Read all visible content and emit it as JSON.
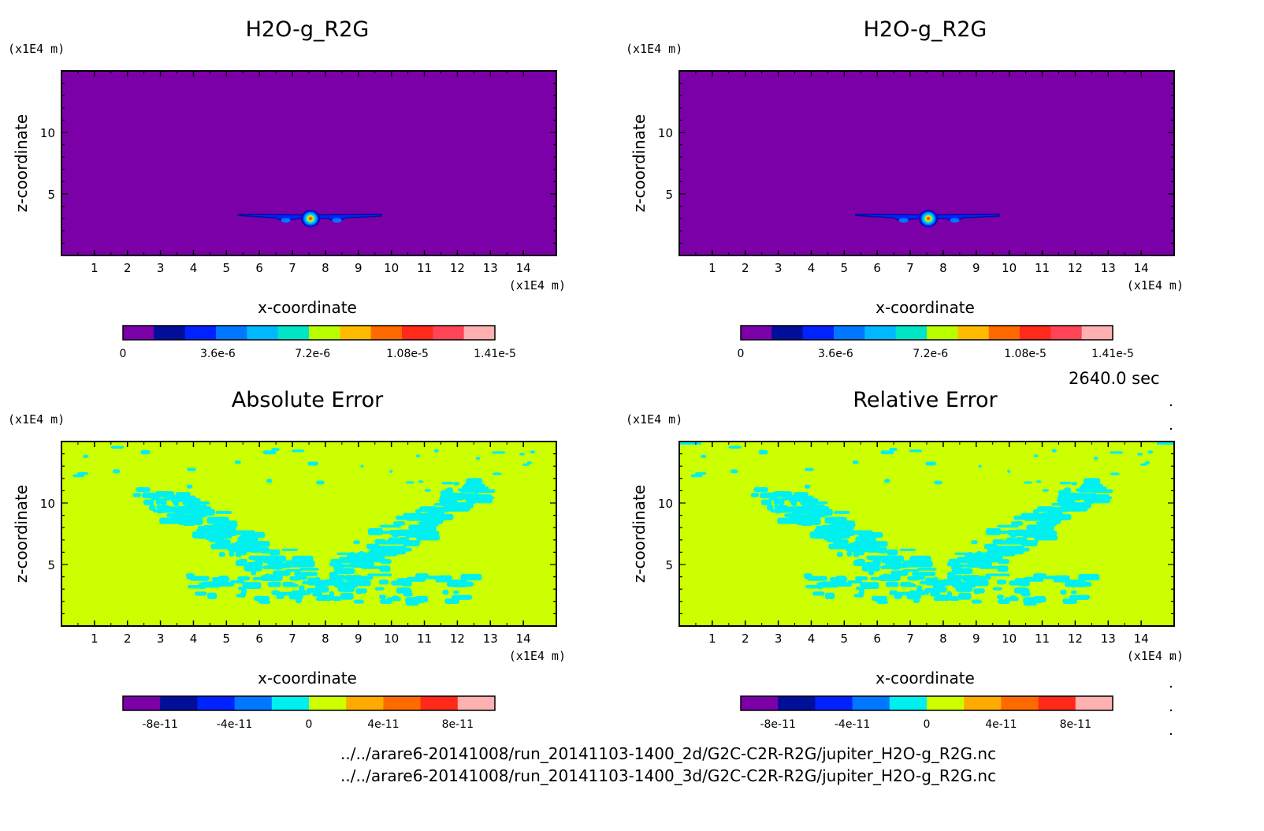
{
  "chart_data": [
    {
      "type": "heatmap",
      "title": "H2O-g_R2G",
      "xlabel": "x-coordinate",
      "ylabel": "z-coordinate",
      "x_unit": "(x1E4 m)",
      "y_unit": "(x1E4 m)",
      "xlim": [
        0,
        15
      ],
      "ylim": [
        0,
        15
      ],
      "x_ticks": [
        "1",
        "2",
        "3",
        "4",
        "5",
        "6",
        "7",
        "8",
        "9",
        "10",
        "11",
        "12",
        "13",
        "14"
      ],
      "y_ticks": [
        "5",
        "10"
      ],
      "background": "#7b00a8",
      "colorbar": {
        "colors": [
          "#7b00a8",
          "#000e99",
          "#0022ff",
          "#0077ff",
          "#00b8ff",
          "#00e5c5",
          "#b8ff00",
          "#ffbb00",
          "#ff6a00",
          "#ff2a1a",
          "#ff4455",
          "#ffb0b0"
        ],
        "labels": [
          "0",
          "3.6e-6",
          "7.2e-6",
          "1.08e-5",
          "1.41e-5"
        ]
      },
      "features": [
        {
          "x": 7.55,
          "z": 3.0,
          "value": "max",
          "shape": "peak"
        },
        {
          "x": 6.2,
          "z": 3.1,
          "value": "3.6e-6",
          "shape": "left-wing"
        },
        {
          "x": 9.0,
          "z": 3.1,
          "value": "3.6e-6",
          "shape": "right-wing"
        }
      ]
    },
    {
      "type": "heatmap",
      "title": "H2O-g_R2G",
      "xlabel": "x-coordinate",
      "ylabel": "z-coordinate",
      "x_unit": "(x1E4 m)",
      "y_unit": "(x1E4 m)",
      "xlim": [
        0,
        15
      ],
      "ylim": [
        0,
        15
      ],
      "x_ticks": [
        "1",
        "2",
        "3",
        "4",
        "5",
        "6",
        "7",
        "8",
        "9",
        "10",
        "11",
        "12",
        "13",
        "14"
      ],
      "y_ticks": [
        "5",
        "10"
      ],
      "background": "#7b00a8",
      "colorbar": {
        "colors": [
          "#7b00a8",
          "#000e99",
          "#0022ff",
          "#0077ff",
          "#00b8ff",
          "#00e5c5",
          "#b8ff00",
          "#ffbb00",
          "#ff6a00",
          "#ff2a1a",
          "#ff4455",
          "#ffb0b0"
        ],
        "labels": [
          "0",
          "3.6e-6",
          "7.2e-6",
          "1.08e-5",
          "1.41e-5"
        ]
      },
      "features": [
        {
          "x": 7.55,
          "z": 3.0,
          "value": "max",
          "shape": "peak"
        },
        {
          "x": 6.2,
          "z": 3.1,
          "value": "3.6e-6",
          "shape": "left-wing"
        },
        {
          "x": 9.0,
          "z": 3.1,
          "value": "3.6e-6",
          "shape": "right-wing"
        }
      ]
    },
    {
      "type": "heatmap",
      "title": "Absolute Error",
      "xlabel": "x-coordinate",
      "ylabel": "z-coordinate",
      "x_unit": "(x1E4 m)",
      "y_unit": "(x1E4 m)",
      "xlim": [
        0,
        15
      ],
      "ylim": [
        0,
        15
      ],
      "x_ticks": [
        "1",
        "2",
        "3",
        "4",
        "5",
        "6",
        "7",
        "8",
        "9",
        "10",
        "11",
        "12",
        "13",
        "14"
      ],
      "y_ticks": [
        "5",
        "10"
      ],
      "background": "#ccff00",
      "colorbar": {
        "colors": [
          "#7b00a8",
          "#000e99",
          "#0022ff",
          "#0077ff",
          "#00f0f0",
          "#ccff00",
          "#ffaa00",
          "#ff6a00",
          "#ff2a1a",
          "#ffb0b0"
        ],
        "labels": [
          "-8e-11",
          "-4e-11",
          "0",
          "4e-11",
          "8e-11"
        ]
      },
      "features": [
        {
          "pattern": "V-shaped band of slightly negative error",
          "color": "#00f0f0"
        }
      ]
    },
    {
      "type": "heatmap",
      "title": "Relative Error",
      "xlabel": "x-coordinate",
      "ylabel": "z-coordinate",
      "x_unit": "(x1E4 m)",
      "y_unit": "(x1E4 m)",
      "xlim": [
        0,
        15
      ],
      "ylim": [
        0,
        15
      ],
      "x_ticks": [
        "1",
        "2",
        "3",
        "4",
        "5",
        "6",
        "7",
        "8",
        "9",
        "10",
        "11",
        "12",
        "13",
        "14"
      ],
      "y_ticks": [
        "5",
        "10"
      ],
      "background": "#ccff00",
      "colorbar": {
        "colors": [
          "#7b00a8",
          "#000e99",
          "#0022ff",
          "#0077ff",
          "#00f0f0",
          "#ccff00",
          "#ffaa00",
          "#ff6a00",
          "#ff2a1a",
          "#ffb0b0"
        ],
        "labels": [
          "-8e-11",
          "-4e-11",
          "0",
          "4e-11",
          "8e-11"
        ]
      },
      "features": [
        {
          "pattern": "V-shaped band of slightly negative error",
          "color": "#00f0f0"
        }
      ]
    }
  ],
  "time_label": "2640.0 sec",
  "file_1": "../../arare6-20141008/run_20141103-1400_2d/G2C-C2R-R2G/jupiter_H2O-g_R2G.nc",
  "file_2": "../../arare6-20141008/run_20141103-1400_3d/G2C-C2R-R2G/jupiter_H2O-g_R2G.nc"
}
